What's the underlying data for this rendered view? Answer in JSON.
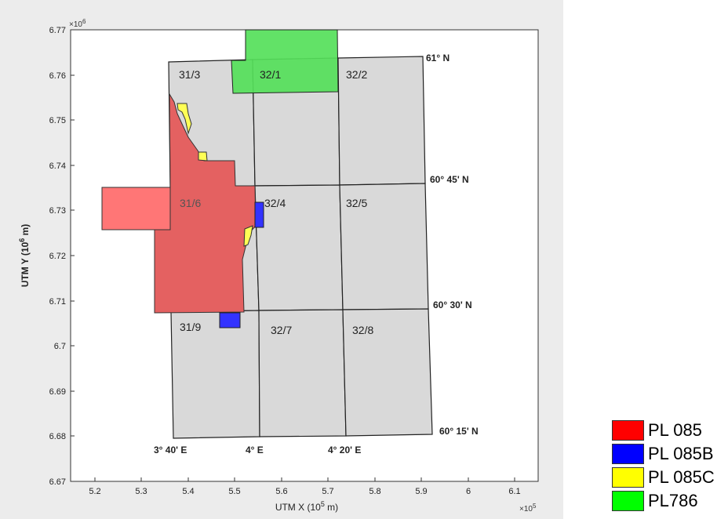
{
  "map": {
    "x_axis": {
      "label_prefix": "UTM X (10",
      "label_exp": "5",
      "label_suffix": " m)",
      "multiplier_base": "×10",
      "multiplier_exp": "5",
      "ticks": [
        "5.2",
        "5.3",
        "5.4",
        "5.5",
        "5.6",
        "5.7",
        "5.8",
        "5.9",
        "6",
        "6.1"
      ]
    },
    "y_axis": {
      "label_prefix": "UTM Y (10",
      "label_exp": "6",
      "label_suffix": " m)",
      "multiplier_base": "×10",
      "multiplier_exp": "6",
      "ticks": [
        "6.77",
        "6.76",
        "6.75",
        "6.74",
        "6.73",
        "6.72",
        "6.71",
        "6.7",
        "6.69",
        "6.68",
        "6.67"
      ]
    },
    "blocks": [
      {
        "label": "31/3"
      },
      {
        "label": "32/1"
      },
      {
        "label": "32/2"
      },
      {
        "label": "31/6"
      },
      {
        "label": "32/4"
      },
      {
        "label": "32/5"
      },
      {
        "label": "31/9"
      },
      {
        "label": "32/7"
      },
      {
        "label": "32/8"
      }
    ],
    "latitudes": [
      "61° N",
      "60° 45' N",
      "60° 30' N",
      "60° 15' N"
    ],
    "longitudes": [
      "3° 40' E",
      "4° E",
      "4° 20' E"
    ],
    "licenses": [
      {
        "name": "PL 085",
        "color": "#ff0000"
      },
      {
        "name": "PL 085B",
        "color": "#0000ff"
      },
      {
        "name": "PL 085C",
        "color": "#ffff00"
      },
      {
        "name": "PL786",
        "color": "#00ff00"
      }
    ]
  }
}
